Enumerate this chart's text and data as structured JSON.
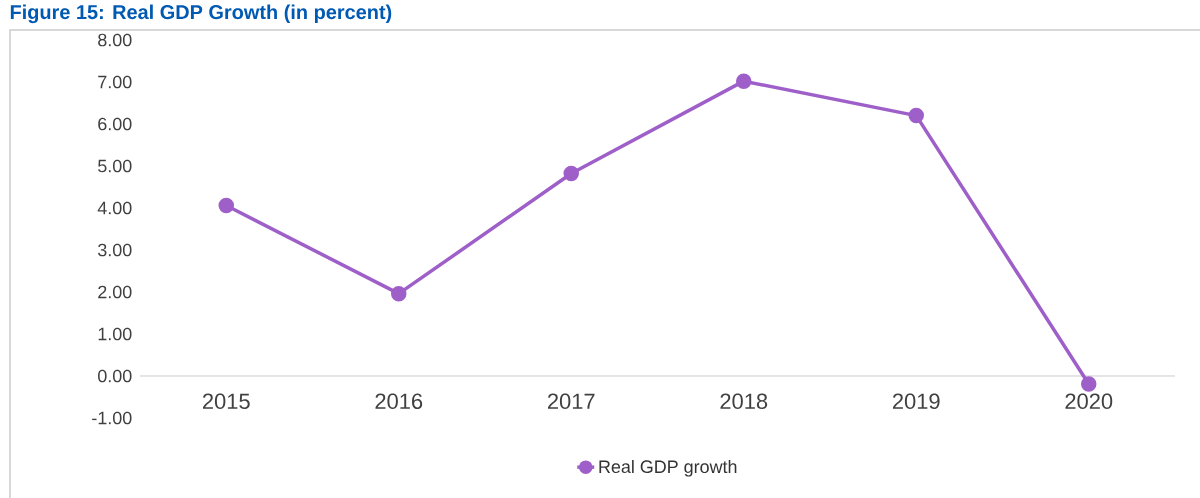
{
  "chart_data": {
    "type": "line",
    "title": "Figure 15: Real GDP Growth (in percent)",
    "categories": [
      "2015",
      "2016",
      "2017",
      "2018",
      "2019",
      "2020"
    ],
    "series": [
      {
        "name": "Real GDP growth",
        "color": "#9e5fc9",
        "values": [
          4.06,
          1.96,
          4.82,
          7.02,
          6.2,
          -0.19
        ]
      }
    ],
    "ylim": [
      -1,
      8
    ],
    "yticks": [
      {
        "value": -1,
        "label": "-1.00"
      },
      {
        "value": 0,
        "label": "0.00"
      },
      {
        "value": 1,
        "label": "1.00"
      },
      {
        "value": 2,
        "label": "2.00"
      },
      {
        "value": 3,
        "label": "3.00"
      },
      {
        "value": 4,
        "label": "4.00"
      },
      {
        "value": 5,
        "label": "5.00"
      },
      {
        "value": 6,
        "label": "6.00"
      },
      {
        "value": 7,
        "label": "7.00"
      },
      {
        "value": 8,
        "label": "8.00"
      }
    ],
    "grid": false,
    "legend": "bottom",
    "marker": "circle",
    "line_style": "solid"
  }
}
